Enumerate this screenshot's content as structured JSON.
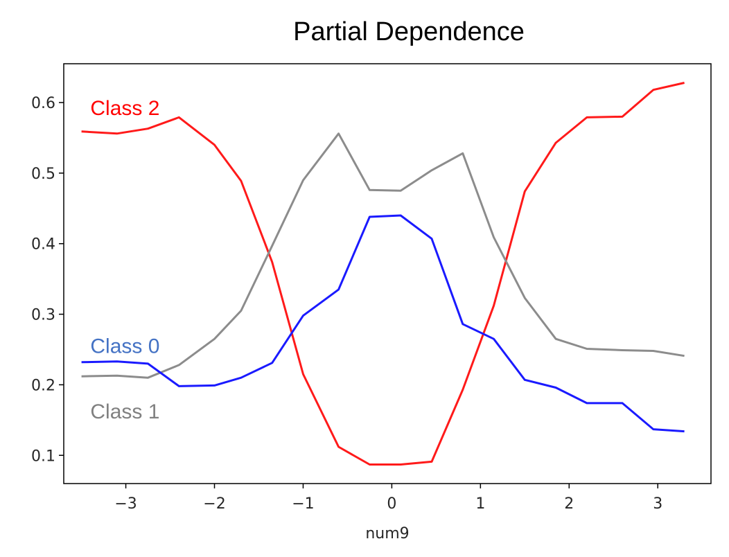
{
  "chart_data": {
    "type": "line",
    "title": "Partial Dependence",
    "xlabel": "num9",
    "ylabel": "",
    "xlim": [
      -3.7,
      3.6
    ],
    "ylim": [
      0.06,
      0.655
    ],
    "xticks": [
      -3,
      -2,
      -1,
      0,
      1,
      2,
      3
    ],
    "xtick_labels": [
      "−3",
      "−2",
      "−1",
      "0",
      "1",
      "2",
      "3"
    ],
    "yticks": [
      0.1,
      0.2,
      0.3,
      0.4,
      0.5,
      0.6
    ],
    "ytick_labels": [
      "0.1",
      "0.2",
      "0.3",
      "0.4",
      "0.5",
      "0.6"
    ],
    "grid": false,
    "legend": "inline labels",
    "x": [
      -3.5,
      -3.1,
      -2.75,
      -2.4,
      -2.0,
      -1.7,
      -1.35,
      -1.0,
      -0.6,
      -0.25,
      0.1,
      0.45,
      0.8,
      1.15,
      1.5,
      1.85,
      2.2,
      2.6,
      2.95,
      3.3
    ],
    "series": [
      {
        "name": "Class 2",
        "color": "#ff1a1a",
        "values": [
          0.559,
          0.556,
          0.563,
          0.579,
          0.54,
          0.489,
          0.374,
          0.215,
          0.112,
          0.087,
          0.087,
          0.091,
          0.193,
          0.312,
          0.474,
          0.543,
          0.579,
          0.58,
          0.618,
          0.628
        ]
      },
      {
        "name": "Class 1",
        "color": "#8c8c8c",
        "values": [
          0.212,
          0.213,
          0.21,
          0.228,
          0.265,
          0.305,
          0.397,
          0.49,
          0.556,
          0.476,
          0.475,
          0.504,
          0.528,
          0.409,
          0.323,
          0.265,
          0.251,
          0.249,
          0.248,
          0.241
        ]
      },
      {
        "name": "Class 0",
        "color": "#1a1aff",
        "values": [
          0.232,
          0.233,
          0.23,
          0.198,
          0.199,
          0.21,
          0.231,
          0.298,
          0.335,
          0.438,
          0.44,
          0.407,
          0.286,
          0.265,
          0.207,
          0.196,
          0.174,
          0.174,
          0.137,
          0.134
        ]
      }
    ],
    "series_labels": [
      {
        "text": "Class 2",
        "color": "#ff0000",
        "x": -3.4,
        "y": 0.593
      },
      {
        "text": "Class 0",
        "color": "#4472c4",
        "x": -3.4,
        "y": 0.256
      },
      {
        "text": "Class 1",
        "color": "#808080",
        "x": -3.4,
        "y": 0.163
      }
    ]
  }
}
